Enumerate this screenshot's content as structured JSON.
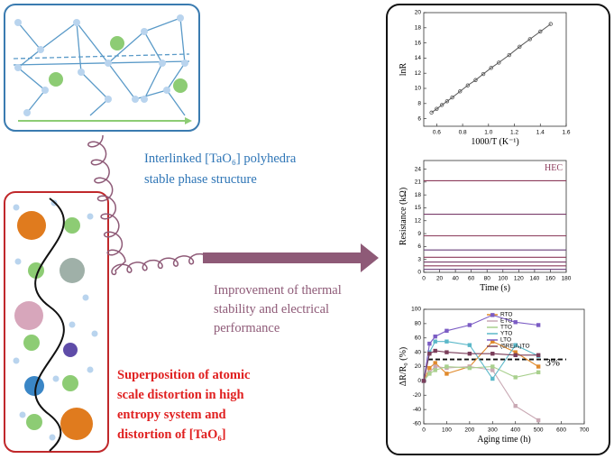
{
  "top_caption": [
    "Interlinked [TaO₆] polyhedra",
    "stable phase structure"
  ],
  "middle_caption": [
    "Improvement of thermal",
    "stability and electrical",
    "performance"
  ],
  "bottom_caption": [
    "Superposition of atomic",
    "scale distortion in high",
    "entropy system and",
    "distortion of [TaO₆]"
  ],
  "charts": [
    {
      "type": "scatter",
      "xlabel": "1000/T (K⁻¹)",
      "ylabel": "lnR",
      "xlim": [
        0.5,
        1.6
      ],
      "ylim": [
        5,
        20
      ],
      "xticks": [
        0.6,
        0.8,
        {
          "value": 1,
          "label": "1.0"
        },
        1.2,
        1.4,
        1.6
      ],
      "yticks": [
        6,
        8,
        10,
        12,
        14,
        16,
        18,
        20
      ],
      "x": [
        0.56,
        0.6,
        0.64,
        0.68,
        0.72,
        0.78,
        0.84,
        0.9,
        0.96,
        1.02,
        1.08,
        1.16,
        1.24,
        1.32,
        1.4,
        1.48
      ],
      "series": [
        {
          "color": "#555555",
          "values": [
            6.8,
            7.3,
            7.8,
            8.3,
            8.8,
            9.6,
            10.4,
            11.1,
            11.9,
            12.7,
            13.4,
            14.4,
            15.5,
            16.5,
            17.5,
            18.5
          ]
        }
      ]
    },
    {
      "type": "line",
      "xlabel": "Time (s)",
      "ylabel": "Resistance (kΩ)",
      "annotation": "HEC",
      "xlim": [
        0,
        180
      ],
      "ylim": [
        0,
        26
      ],
      "xticks": [
        0,
        20,
        40,
        60,
        80,
        100,
        120,
        140,
        160,
        180
      ],
      "yticks": [
        0,
        3,
        6,
        9,
        12,
        15,
        18,
        21,
        24
      ],
      "x": [
        0,
        180
      ],
      "series": [
        {
          "color": "#8b3a5a",
          "values": [
            21.3,
            21.3
          ]
        },
        {
          "color": "#7a3d6a",
          "values": [
            13.5,
            13.5
          ]
        },
        {
          "color": "#8b3a5a",
          "values": [
            8.5,
            8.5
          ]
        },
        {
          "color": "#6a3f7a",
          "values": [
            5.2,
            5.2
          ]
        },
        {
          "color": "#8b3a5a",
          "values": [
            3.5,
            3.5
          ]
        },
        {
          "color": "#7a3d6a",
          "values": [
            2.4,
            2.4
          ]
        },
        {
          "color": "#8b3a5a",
          "values": [
            1.5,
            1.5
          ]
        },
        {
          "color": "#6a3f7a",
          "values": [
            0.7,
            0.7
          ]
        }
      ]
    },
    {
      "type": "line",
      "xlabel": "Aging time (h)",
      "ylabel": "ΔR/R₀ (%)",
      "annotation": "3%",
      "reference_line": 30,
      "xlim": [
        0,
        700
      ],
      "ylim": [
        -60,
        100
      ],
      "xticks": [
        0,
        100,
        200,
        300,
        400,
        500,
        600,
        700
      ],
      "yticks": [
        -60,
        -40,
        -20,
        0,
        20,
        40,
        60,
        80,
        100
      ],
      "x": [
        0,
        25,
        50,
        100,
        200,
        300,
        400,
        500
      ],
      "series": [
        {
          "name": "RTO",
          "color": "#e08a2c",
          "values": [
            0,
            18,
            25,
            10,
            20,
            55,
            40,
            20
          ]
        },
        {
          "name": "ETO",
          "color": "#c9a9b4",
          "values": [
            0,
            12,
            20,
            18,
            20,
            15,
            -35,
            -55
          ]
        },
        {
          "name": "TTO",
          "color": "#a9d08e",
          "values": [
            0,
            10,
            15,
            20,
            18,
            20,
            5,
            12
          ]
        },
        {
          "name": "YTO",
          "color": "#5bb8c9",
          "values": [
            0,
            40,
            55,
            55,
            50,
            3,
            50,
            35
          ]
        },
        {
          "name": "LTO",
          "color": "#7b5cc4",
          "values": [
            0,
            52,
            62,
            70,
            78,
            92,
            82,
            78
          ]
        },
        {
          "name": "(5RE₁/₅)TO",
          "color": "#7a3d5a",
          "values": [
            0,
            38,
            42,
            40,
            38,
            38,
            36,
            36
          ]
        }
      ]
    }
  ]
}
